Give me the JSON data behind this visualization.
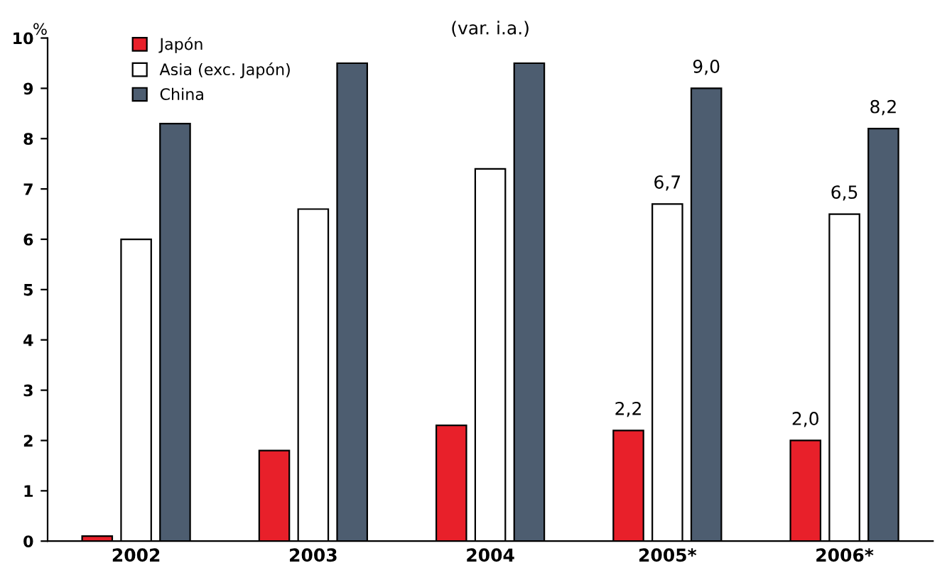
{
  "chart_data": {
    "type": "bar",
    "ylabel": "%",
    "annotations": [
      "(var. i.a.)"
    ],
    "categories": [
      "2002",
      "2003",
      "2004",
      "2005*",
      "2006*"
    ],
    "series": [
      {
        "name": "Japón",
        "color": "#e8202a",
        "values": [
          0.1,
          1.8,
          2.3,
          2.2,
          2.0
        ],
        "value_labels": [
          null,
          null,
          null,
          "2,2",
          "2,0"
        ]
      },
      {
        "name": "Asia (exc. Japón)",
        "color": "#ffffff",
        "values": [
          6.0,
          6.6,
          7.4,
          6.7,
          6.5
        ],
        "value_labels": [
          null,
          null,
          null,
          "6,7",
          "6,5"
        ]
      },
      {
        "name": "China",
        "color": "#4d5d70",
        "values": [
          8.3,
          9.5,
          9.5,
          9.0,
          8.2
        ],
        "value_labels": [
          null,
          null,
          null,
          "9,0",
          "8,2"
        ]
      }
    ],
    "ylim": [
      0,
      10
    ],
    "yticks": [
      0,
      1,
      2,
      3,
      4,
      5,
      6,
      7,
      8,
      9,
      10
    ],
    "grid": false,
    "legend": "top left"
  }
}
